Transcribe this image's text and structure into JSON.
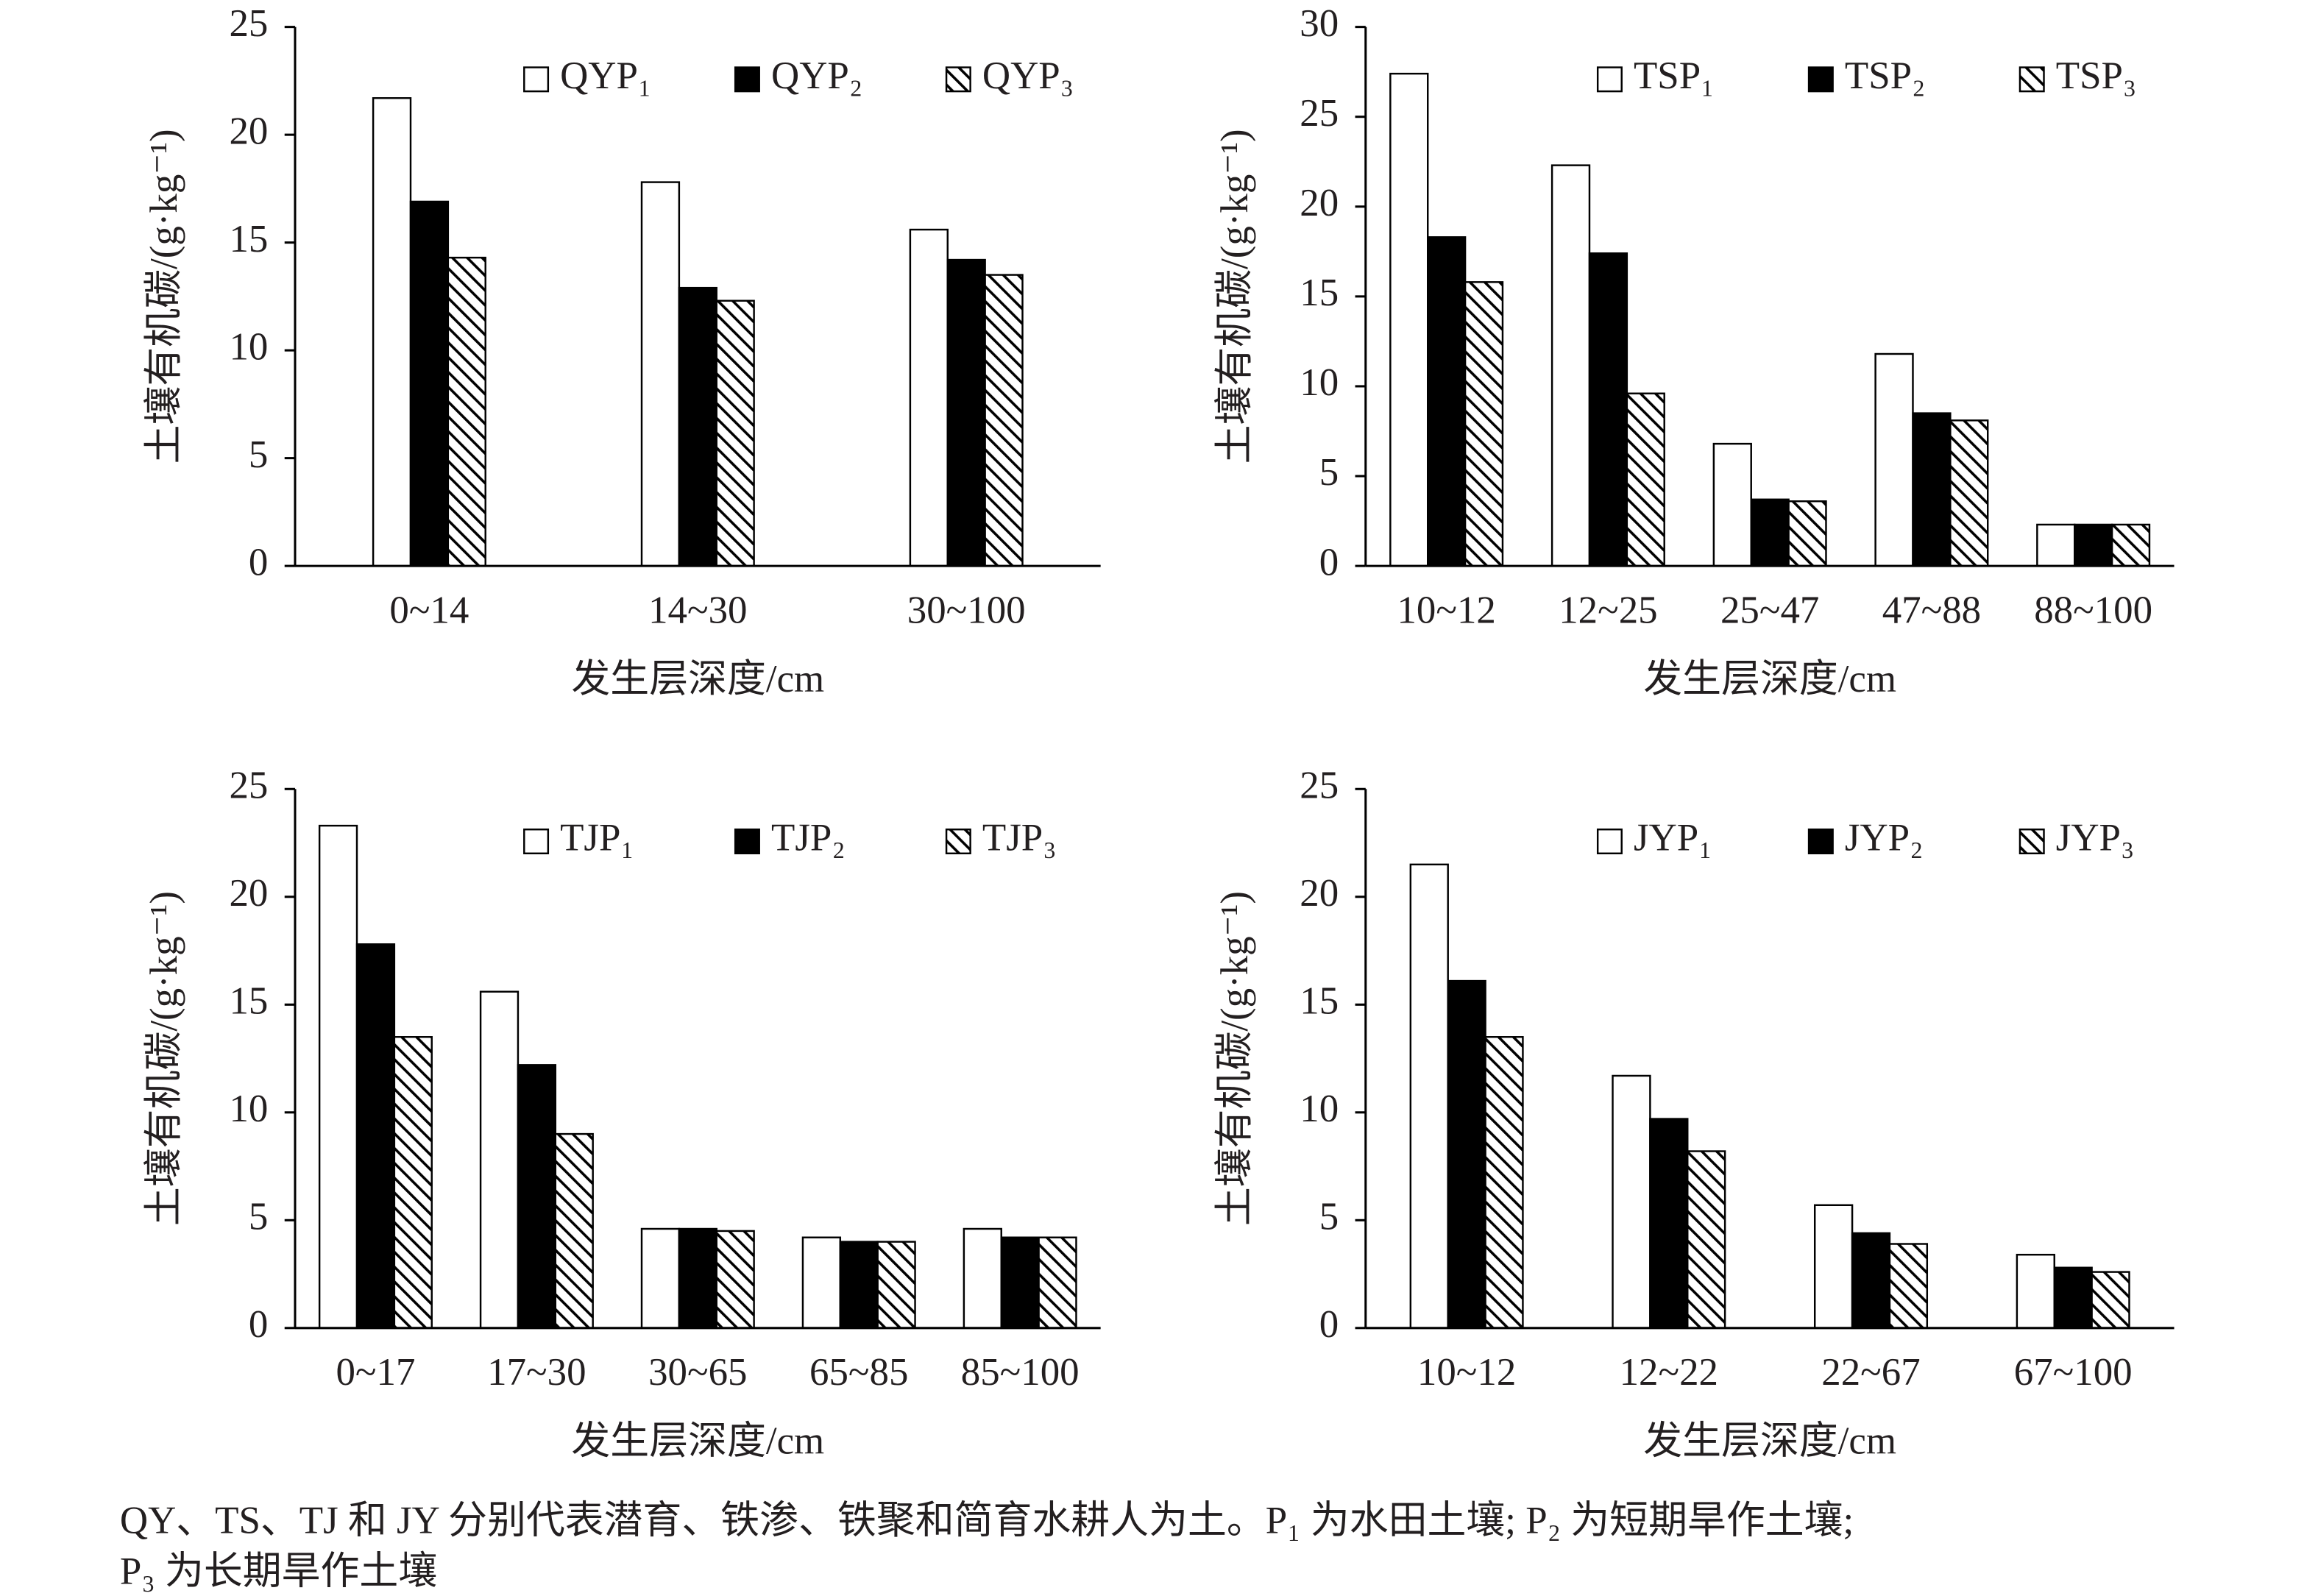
{
  "chart_data": [
    {
      "type": "bar",
      "y_label": "土壤有机碳/(g·kg⁻¹)",
      "x_label": "发生层深度/cm",
      "categories": [
        "0~14",
        "14~30",
        "30~100"
      ],
      "series": [
        {
          "name": "QYP₁",
          "color": "#ffffff",
          "values": [
            21.7,
            17.8,
            15.6
          ]
        },
        {
          "name": "QYP₂",
          "color": "#000000",
          "values": [
            16.9,
            12.9,
            14.2
          ]
        },
        {
          "name": "QYP₃",
          "color": "#000000",
          "hatch": true,
          "values": [
            14.3,
            12.3,
            13.5
          ]
        }
      ],
      "ylim": [
        0,
        25
      ],
      "yticks": [
        0,
        5,
        10,
        15,
        20,
        25
      ],
      "legend": "top-right"
    },
    {
      "type": "bar",
      "y_label": "土壤有机碳/(g·kg⁻¹)",
      "x_label": "发生层深度/cm",
      "categories": [
        "10~12",
        "12~25",
        "25~47",
        "47~88",
        "88~100"
      ],
      "series": [
        {
          "name": "TSP₁",
          "color": "#ffffff",
          "values": [
            27.4,
            22.3,
            6.8,
            11.8,
            2.3
          ]
        },
        {
          "name": "TSP₂",
          "color": "#000000",
          "values": [
            18.3,
            17.4,
            3.7,
            8.5,
            2.3
          ]
        },
        {
          "name": "TSP₃",
          "color": "#000000",
          "hatch": true,
          "values": [
            15.8,
            9.6,
            3.6,
            8.1,
            2.3
          ]
        }
      ],
      "ylim": [
        0,
        30
      ],
      "yticks": [
        0,
        5,
        10,
        15,
        20,
        25,
        30
      ],
      "legend": "top-right"
    },
    {
      "type": "bar",
      "y_label": "土壤有机碳/(g·kg⁻¹)",
      "x_label": "发生层深度/cm",
      "categories": [
        "0~17",
        "17~30",
        "30~65",
        "65~85",
        "85~100"
      ],
      "series": [
        {
          "name": "TJP₁",
          "color": "#ffffff",
          "values": [
            23.3,
            15.6,
            4.6,
            4.2,
            4.6
          ]
        },
        {
          "name": "TJP₂",
          "color": "#000000",
          "values": [
            17.8,
            12.2,
            4.6,
            4.0,
            4.2
          ]
        },
        {
          "name": "TJP₃",
          "color": "#000000",
          "hatch": true,
          "values": [
            13.5,
            9.0,
            4.5,
            4.0,
            4.2
          ]
        }
      ],
      "ylim": [
        0,
        25
      ],
      "yticks": [
        0,
        5,
        10,
        15,
        20,
        25
      ],
      "legend": "top-right"
    },
    {
      "type": "bar",
      "y_label": "土壤有机碳/(g·kg⁻¹)",
      "x_label": "发生层深度/cm",
      "categories": [
        "10~12",
        "12~22",
        "22~67",
        "67~100"
      ],
      "series": [
        {
          "name": "JYP₁",
          "color": "#ffffff",
          "values": [
            21.5,
            11.7,
            5.7,
            3.4
          ]
        },
        {
          "name": "JYP₂",
          "color": "#000000",
          "values": [
            16.1,
            9.7,
            4.4,
            2.8
          ]
        },
        {
          "name": "JYP₃",
          "color": "#000000",
          "hatch": true,
          "values": [
            13.5,
            8.2,
            3.9,
            2.6
          ]
        }
      ],
      "ylim": [
        0,
        25
      ],
      "yticks": [
        0,
        5,
        10,
        15,
        20,
        25
      ],
      "legend": "top-right"
    }
  ],
  "caption": [
    "QY、TS、TJ 和 JY 分别代表潜育、铁渗、铁聚和简育水耕人为土。P₁ 为水田土壤; P₂ 为短期旱作土壤;",
    "P₃ 为长期旱作土壤"
  ]
}
